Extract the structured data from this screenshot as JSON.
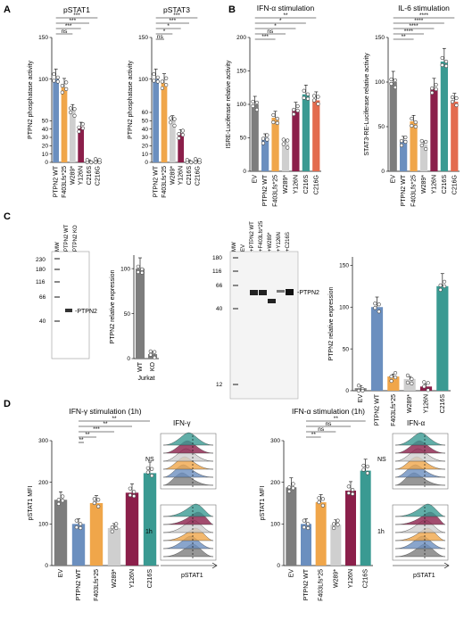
{
  "colors": {
    "ev": "#7d7d7d",
    "wt": "#6b8fbf",
    "f403": "#f0a64a",
    "w289": "#cfcfcf",
    "y126n": "#8b1f4a",
    "c216s": "#3a9a92",
    "c216g": "#e36b4f",
    "c216s_a": "#c9c9c9",
    "c216g_a": "#c9c9c9",
    "ns": "#000000"
  },
  "panel_labels": {
    "a": "A",
    "b": "B",
    "c": "C",
    "d": "D"
  },
  "axis_units": {
    "mw": "MW",
    "ppk": "PTPN2 KO"
  },
  "chart_data": [
    {
      "id": "a1",
      "type": "bar",
      "title": "pSTAT1",
      "ylabel": "PTPN2 phosphatase activity",
      "yticks": [
        "0",
        "10",
        "20",
        "30",
        "40",
        "50",
        "100",
        "150"
      ],
      "ylim": [
        0,
        150
      ],
      "categories": [
        "PTPN2 WT",
        "F403Lfs*25",
        "W289*",
        "Y126N",
        "C216S",
        "C216G"
      ],
      "values": [
        100,
        90,
        62,
        43,
        0,
        0
      ],
      "sig": [
        "***",
        "***",
        "***",
        "ns"
      ]
    },
    {
      "id": "a2",
      "type": "bar",
      "title": "pSTAT3",
      "ylabel": "PTPN2 phosphatase activity",
      "yticks": [
        "0",
        "10",
        "20",
        "30",
        "40",
        "50",
        "60",
        "100",
        "150"
      ],
      "ylim": [
        0,
        150
      ],
      "categories": [
        "PTPN2 WT",
        "F403Lfs*25",
        "W289*",
        "Y126N",
        "C216S",
        "C216G"
      ],
      "values": [
        100,
        95,
        50,
        35,
        0,
        0
      ],
      "sig": [
        "***",
        "***",
        "*",
        "*",
        "ns"
      ]
    },
    {
      "id": "b1",
      "type": "bar",
      "title": "IFN-α stimulation",
      "ylabel": "ISRE-Luciferase relative activity",
      "yticks": [
        "0",
        "50",
        "100",
        "150",
        "200"
      ],
      "ylim": [
        0,
        200
      ],
      "categories": [
        "EV",
        "PTPN2 WT",
        "F403Lfs*25",
        "W289*",
        "Y126N",
        "C216S",
        "C216G"
      ],
      "values": [
        100,
        50,
        80,
        42,
        92,
        115,
        106
      ],
      "sig": [
        "**",
        "*",
        "*",
        "ns",
        "***"
      ]
    },
    {
      "id": "b2",
      "type": "bar",
      "title": "IL-6 stimulation",
      "ylabel": "STAT3-RE-Luciferase relative activity",
      "yticks": [
        "0",
        "50",
        "100",
        "150"
      ],
      "ylim": [
        0,
        150
      ],
      "categories": [
        "EV",
        "PTPN2 WT",
        "F403Lfs*25",
        "W289*",
        "Y126N",
        "C216S",
        "C216G"
      ],
      "values": [
        100,
        35,
        56,
        30,
        93,
        123,
        78
      ],
      "sig": [
        "****",
        "****",
        "****",
        "****",
        "**"
      ]
    },
    {
      "id": "c1",
      "type": "bar",
      "title": "",
      "ylabel": "PTPN2 relative expression",
      "yticks": [
        "0",
        "50",
        "100"
      ],
      "ylim": [
        0,
        115
      ],
      "categories": [
        "WT",
        "KO"
      ],
      "group": "Jurkat",
      "values": [
        100,
        5
      ]
    },
    {
      "id": "c2",
      "type": "bar",
      "title": "",
      "ylabel": "PTPN2 relative expression",
      "yticks": [
        "0",
        "50",
        "100",
        "150"
      ],
      "ylim": [
        0,
        160
      ],
      "categories": [
        "EV",
        "PTPN2 WT",
        "F403Lfs*25",
        "W289*",
        "Y126N",
        "C216S"
      ],
      "values": [
        3,
        100,
        17,
        14,
        5,
        125
      ]
    },
    {
      "id": "d1",
      "type": "bar",
      "title": "IFN-γ stimulation (1h)",
      "ylabel": "pSTAT1 MFI",
      "yticks": [
        "0",
        "100",
        "200",
        "300"
      ],
      "ylim": [
        0,
        300
      ],
      "categories": [
        "EV",
        "PTPN2 WT",
        "F403Lfs*25",
        "W289*",
        "Y126N",
        "C216S"
      ],
      "values": [
        158,
        100,
        150,
        90,
        175,
        222
      ],
      "sig": [
        "**",
        "**",
        "***",
        "**",
        "**"
      ]
    },
    {
      "id": "d2",
      "type": "bar",
      "title": "IFN-α stimulation (1h)",
      "ylabel": "pSTAT1 MFI",
      "yticks": [
        "0",
        "100",
        "200",
        "300"
      ],
      "ylim": [
        0,
        300
      ],
      "categories": [
        "EV",
        "PTPN2 WT",
        "F403Lfs*25",
        "W289*",
        "Y126N",
        "C216S"
      ],
      "values": [
        188,
        100,
        152,
        98,
        180,
        228
      ],
      "sig": [
        "**",
        "ns",
        "ns",
        "**"
      ]
    }
  ],
  "blots": {
    "left": {
      "mw_label": "MW",
      "lane_labels": [
        "MW",
        "PTPN2 WT",
        "PTPN2 KO"
      ],
      "markers": [
        "230",
        "180",
        "116",
        "66",
        "40"
      ],
      "band_label": "-PTPN2"
    },
    "right": {
      "mw_label": "MW",
      "lane_labels": [
        "EV",
        "+PTPN2 WT",
        "+F403Lfs*25",
        "+W289*",
        "+Y126N",
        "+C216S"
      ],
      "markers": [
        "180",
        "116",
        "66",
        "40",
        "12"
      ],
      "band_label": "-PTPN2"
    }
  },
  "flow": {
    "gamma": {
      "title": "IFN-γ",
      "rows": [
        "NS",
        "1h"
      ],
      "xlabel": "pSTAT1"
    },
    "alpha": {
      "title": "IFN-α",
      "rows": [
        "NS",
        "1h"
      ],
      "xlabel": "pSTAT1"
    }
  }
}
